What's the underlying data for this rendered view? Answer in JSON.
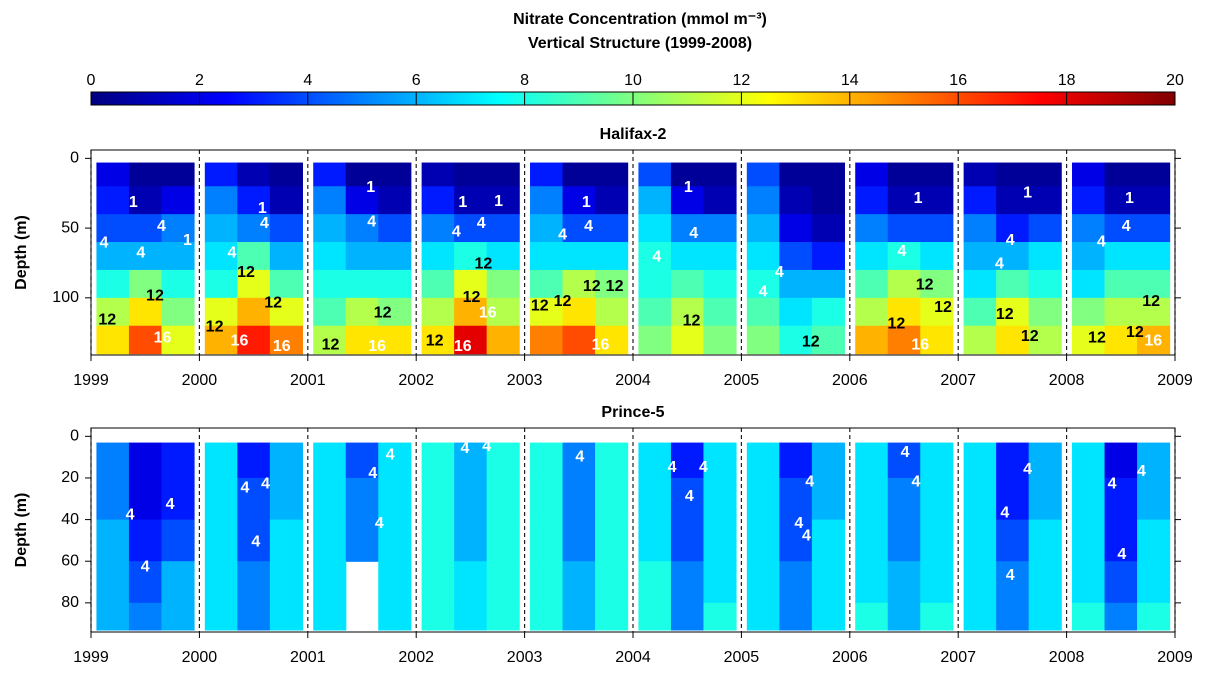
{
  "title": "Nitrate Concentration (mmol m⁻³)",
  "subtitle": "Vertical Structure (1999-2008)",
  "colorbar": {
    "lim": [
      0,
      20
    ],
    "ticks": [
      0,
      2,
      4,
      6,
      8,
      10,
      12,
      14,
      16,
      18,
      20
    ],
    "colormap": "jet"
  },
  "chart_data": [
    {
      "type": "heatmap",
      "title": "Halifax-2",
      "ylabel": "Depth (m)",
      "xlim": [
        1999,
        2009
      ],
      "xticks": [
        1999,
        2000,
        2001,
        2002,
        2003,
        2004,
        2005,
        2006,
        2007,
        2008,
        2009
      ],
      "ylim": [
        -6,
        141
      ],
      "yticks": [
        0,
        50,
        100
      ],
      "y_inverted": true,
      "grid": true,
      "x_edges": [
        1999.05,
        1999.35,
        1999.65,
        1999.95,
        2000.05,
        2000.35,
        2000.65,
        2000.95,
        2001.05,
        2001.35,
        2001.65,
        2001.95,
        2002.05,
        2002.35,
        2002.65,
        2002.95,
        2003.05,
        2003.35,
        2003.65,
        2003.95,
        2004.05,
        2004.35,
        2004.65,
        2004.95,
        2005.05,
        2005.35,
        2005.65,
        2005.95,
        2006.05,
        2006.35,
        2006.65,
        2006.95,
        2007.05,
        2007.35,
        2007.65,
        2007.95,
        2008.05,
        2008.35,
        2008.65,
        2008.95
      ],
      "y_edges": [
        3,
        20,
        40,
        60,
        80,
        100,
        120,
        140
      ],
      "z": [
        [
          2,
          0.5,
          0.5,
          null,
          3,
          1,
          0.5,
          null,
          3,
          0.5,
          0.5,
          null,
          1,
          0.5,
          0.5,
          null,
          3,
          0.5,
          0.5,
          null,
          4,
          0.5,
          0.5,
          null,
          4,
          0.5,
          0.5,
          null,
          2,
          0.5,
          0.5,
          null,
          1,
          0.5,
          0.5,
          null,
          2,
          0.5,
          0.5
        ],
        [
          3,
          1,
          2,
          null,
          5,
          3,
          1,
          null,
          5,
          2,
          1,
          null,
          3,
          1,
          1,
          null,
          5,
          2,
          1,
          null,
          6,
          2,
          1,
          null,
          5,
          1,
          0.5,
          null,
          3,
          1,
          1,
          null,
          3,
          1,
          1,
          null,
          3,
          1,
          1
        ],
        [
          4,
          4,
          5,
          null,
          6,
          5,
          4,
          null,
          6,
          5,
          4,
          null,
          5,
          4,
          4,
          null,
          6,
          4,
          4,
          null,
          7,
          5,
          5,
          null,
          6,
          2,
          1,
          null,
          5,
          4,
          4,
          null,
          5,
          3,
          4,
          null,
          5,
          4,
          4
        ],
        [
          6,
          6,
          6,
          null,
          7,
          9,
          6,
          null,
          7,
          6,
          6,
          null,
          7,
          8,
          7,
          null,
          7,
          7,
          7,
          null,
          8,
          7,
          7,
          null,
          7,
          4,
          3,
          null,
          7,
          8,
          7,
          null,
          6,
          6,
          7,
          null,
          6,
          7,
          7
        ],
        [
          8,
          10,
          8,
          null,
          8,
          12,
          9,
          null,
          8,
          8,
          8,
          null,
          9,
          12,
          10,
          null,
          9,
          11,
          10,
          null,
          8,
          9,
          8,
          null,
          8,
          6,
          6,
          null,
          9,
          11,
          10,
          null,
          7,
          9,
          8,
          null,
          7,
          9,
          9
        ],
        [
          11,
          13,
          10,
          null,
          12,
          14,
          12,
          null,
          9,
          11,
          10,
          null,
          11,
          14,
          11,
          null,
          12,
          13,
          11,
          null,
          9,
          11,
          9,
          null,
          9,
          7,
          8,
          null,
          11,
          13,
          12,
          null,
          9,
          12,
          10,
          null,
          10,
          11,
          11
        ],
        [
          13,
          16,
          12,
          null,
          14,
          17,
          15,
          null,
          11,
          13,
          13,
          null,
          13,
          18,
          14,
          null,
          15,
          16,
          13,
          null,
          10,
          12,
          10,
          null,
          10,
          8,
          9,
          null,
          14,
          15,
          13,
          null,
          11,
          13,
          11,
          null,
          12,
          13,
          14
        ]
      ],
      "contour_labels": [
        {
          "x": 1999.39,
          "depth": 32,
          "value": 1
        },
        {
          "x": 1999.12,
          "depth": 61,
          "value": 4
        },
        {
          "x": 1999.65,
          "depth": 49,
          "value": 4
        },
        {
          "x": 1999.46,
          "depth": 68,
          "value": 4
        },
        {
          "x": 1999.89,
          "depth": 59,
          "value": 1
        },
        {
          "x": 1999.59,
          "depth": 99,
          "value": 12
        },
        {
          "x": 1999.15,
          "depth": 116,
          "value": 12
        },
        {
          "x": 1999.66,
          "depth": 129,
          "value": 16
        },
        {
          "x": 2000.3,
          "depth": 68,
          "value": 4
        },
        {
          "x": 2000.58,
          "depth": 36,
          "value": 1
        },
        {
          "x": 2000.6,
          "depth": 47,
          "value": 4
        },
        {
          "x": 2000.43,
          "depth": 82,
          "value": 12
        },
        {
          "x": 2000.68,
          "depth": 104,
          "value": 12
        },
        {
          "x": 2000.14,
          "depth": 121,
          "value": 12
        },
        {
          "x": 2000.37,
          "depth": 131,
          "value": 16
        },
        {
          "x": 2000.76,
          "depth": 135,
          "value": 16
        },
        {
          "x": 2001.58,
          "depth": 21,
          "value": 1
        },
        {
          "x": 2001.59,
          "depth": 46,
          "value": 4
        },
        {
          "x": 2001.69,
          "depth": 111,
          "value": 12
        },
        {
          "x": 2001.21,
          "depth": 134,
          "value": 12
        },
        {
          "x": 2001.64,
          "depth": 135,
          "value": 16
        },
        {
          "x": 2002.43,
          "depth": 32,
          "value": 1
        },
        {
          "x": 2002.37,
          "depth": 53,
          "value": 4
        },
        {
          "x": 2002.6,
          "depth": 47,
          "value": 4
        },
        {
          "x": 2002.76,
          "depth": 31,
          "value": 1
        },
        {
          "x": 2002.62,
          "depth": 76,
          "value": 12
        },
        {
          "x": 2002.51,
          "depth": 100,
          "value": 12
        },
        {
          "x": 2002.66,
          "depth": 111,
          "value": 16
        },
        {
          "x": 2002.17,
          "depth": 131,
          "value": 12
        },
        {
          "x": 2002.43,
          "depth": 135,
          "value": 16
        },
        {
          "x": 2003.57,
          "depth": 32,
          "value": 1
        },
        {
          "x": 2003.35,
          "depth": 55,
          "value": 4
        },
        {
          "x": 2003.59,
          "depth": 49,
          "value": 4
        },
        {
          "x": 2003.14,
          "depth": 106,
          "value": 12
        },
        {
          "x": 2003.35,
          "depth": 103,
          "value": 12
        },
        {
          "x": 2003.62,
          "depth": 92,
          "value": 12
        },
        {
          "x": 2003.83,
          "depth": 92,
          "value": 12
        },
        {
          "x": 2003.7,
          "depth": 134,
          "value": 16
        },
        {
          "x": 2004.51,
          "depth": 21,
          "value": 1
        },
        {
          "x": 2004.22,
          "depth": 71,
          "value": 4
        },
        {
          "x": 2004.56,
          "depth": 54,
          "value": 4
        },
        {
          "x": 2004.54,
          "depth": 117,
          "value": 12
        },
        {
          "x": 2005.35,
          "depth": 82,
          "value": 4
        },
        {
          "x": 2005.2,
          "depth": 96,
          "value": 4
        },
        {
          "x": 2005.64,
          "depth": 132,
          "value": 12
        },
        {
          "x": 2006.63,
          "depth": 29,
          "value": 1
        },
        {
          "x": 2006.48,
          "depth": 67,
          "value": 4
        },
        {
          "x": 2006.69,
          "depth": 91,
          "value": 12
        },
        {
          "x": 2006.86,
          "depth": 107,
          "value": 12
        },
        {
          "x": 2006.43,
          "depth": 119,
          "value": 12
        },
        {
          "x": 2006.65,
          "depth": 134,
          "value": 16
        },
        {
          "x": 2007.64,
          "depth": 25,
          "value": 1
        },
        {
          "x": 2007.48,
          "depth": 59,
          "value": 4
        },
        {
          "x": 2007.38,
          "depth": 76,
          "value": 4
        },
        {
          "x": 2007.43,
          "depth": 112,
          "value": 12
        },
        {
          "x": 2007.66,
          "depth": 128,
          "value": 12
        },
        {
          "x": 2008.58,
          "depth": 29,
          "value": 1
        },
        {
          "x": 2008.55,
          "depth": 49,
          "value": 4
        },
        {
          "x": 2008.32,
          "depth": 60,
          "value": 4
        },
        {
          "x": 2008.78,
          "depth": 103,
          "value": 12
        },
        {
          "x": 2008.63,
          "depth": 125,
          "value": 12
        },
        {
          "x": 2008.28,
          "depth": 129,
          "value": 12
        },
        {
          "x": 2008.8,
          "depth": 131,
          "value": 16
        }
      ]
    },
    {
      "type": "heatmap",
      "title": "Prince-5",
      "ylabel": "Depth (m)",
      "xlim": [
        1999,
        2009
      ],
      "xticks": [
        1999,
        2000,
        2001,
        2002,
        2003,
        2004,
        2005,
        2006,
        2007,
        2008,
        2009
      ],
      "ylim": [
        -4,
        94
      ],
      "yticks": [
        0,
        20,
        40,
        60,
        80
      ],
      "y_inverted": true,
      "grid": true,
      "x_edges": [
        1999.05,
        1999.35,
        1999.65,
        1999.95,
        2000.05,
        2000.35,
        2000.65,
        2000.95,
        2001.05,
        2001.35,
        2001.65,
        2001.95,
        2002.05,
        2002.35,
        2002.65,
        2002.95,
        2003.05,
        2003.35,
        2003.65,
        2003.95,
        2004.05,
        2004.35,
        2004.65,
        2004.95,
        2005.05,
        2005.35,
        2005.65,
        2005.95,
        2006.05,
        2006.35,
        2006.65,
        2006.95,
        2007.05,
        2007.35,
        2007.65,
        2007.95,
        2008.05,
        2008.35,
        2008.65,
        2008.95
      ],
      "y_edges": [
        3,
        20,
        40,
        60,
        80,
        93
      ],
      "z": [
        [
          5,
          2,
          3,
          null,
          7,
          3,
          6,
          null,
          7,
          4,
          7,
          null,
          8,
          6,
          8,
          null,
          8,
          5,
          8,
          null,
          7,
          3,
          7,
          null,
          7,
          3,
          6,
          null,
          7,
          4,
          7,
          null,
          7,
          3,
          6,
          null,
          7,
          2,
          6
        ],
        [
          5,
          2,
          3,
          null,
          7,
          4,
          6,
          null,
          7,
          5,
          7,
          null,
          8,
          6,
          8,
          null,
          8,
          5,
          8,
          null,
          7,
          4,
          7,
          null,
          7,
          4,
          6,
          null,
          7,
          5,
          7,
          null,
          7,
          3,
          6,
          null,
          7,
          3,
          6
        ],
        [
          6,
          3,
          4,
          null,
          7,
          4,
          7,
          null,
          7,
          5,
          7,
          null,
          8,
          6,
          8,
          null,
          8,
          5,
          8,
          null,
          7,
          4,
          7,
          null,
          7,
          4,
          7,
          null,
          7,
          5,
          7,
          null,
          7,
          4,
          7,
          null,
          7,
          3,
          7
        ],
        [
          6,
          4,
          6,
          null,
          7,
          5,
          7,
          null,
          7,
          null,
          7,
          null,
          8,
          7,
          8,
          null,
          8,
          6,
          8,
          null,
          8,
          5,
          7,
          null,
          7,
          5,
          7,
          null,
          7,
          6,
          7,
          null,
          7,
          5,
          7,
          null,
          7,
          4,
          7
        ],
        [
          6,
          5,
          6,
          null,
          7,
          5,
          7,
          null,
          7,
          null,
          7,
          null,
          8,
          7,
          8,
          null,
          8,
          6,
          8,
          null,
          8,
          5,
          8,
          null,
          7,
          5,
          7,
          null,
          8,
          6,
          8,
          null,
          7,
          5,
          7,
          null,
          8,
          5,
          8
        ]
      ],
      "contour_labels": [
        {
          "x": 1999.36,
          "depth": 38,
          "value": 4
        },
        {
          "x": 1999.73,
          "depth": 33,
          "value": 4
        },
        {
          "x": 1999.5,
          "depth": 63,
          "value": 4
        },
        {
          "x": 2000.42,
          "depth": 25,
          "value": 4
        },
        {
          "x": 2000.61,
          "depth": 23,
          "value": 4
        },
        {
          "x": 2000.52,
          "depth": 51,
          "value": 4
        },
        {
          "x": 2001.6,
          "depth": 18,
          "value": 4
        },
        {
          "x": 2001.76,
          "depth": 9,
          "value": 4
        },
        {
          "x": 2001.66,
          "depth": 42,
          "value": 4
        },
        {
          "x": 2002.45,
          "depth": 6,
          "value": 4
        },
        {
          "x": 2002.65,
          "depth": 5,
          "value": 4
        },
        {
          "x": 2003.51,
          "depth": 10,
          "value": 4
        },
        {
          "x": 2004.36,
          "depth": 15,
          "value": 4
        },
        {
          "x": 2004.65,
          "depth": 15,
          "value": 4
        },
        {
          "x": 2004.52,
          "depth": 29,
          "value": 4
        },
        {
          "x": 2005.63,
          "depth": 22,
          "value": 4
        },
        {
          "x": 2005.53,
          "depth": 42,
          "value": 4
        },
        {
          "x": 2005.6,
          "depth": 48,
          "value": 4
        },
        {
          "x": 2006.51,
          "depth": 8,
          "value": 4
        },
        {
          "x": 2006.61,
          "depth": 22,
          "value": 4
        },
        {
          "x": 2007.64,
          "depth": 16,
          "value": 4
        },
        {
          "x": 2007.43,
          "depth": 37,
          "value": 4
        },
        {
          "x": 2007.48,
          "depth": 67,
          "value": 4
        },
        {
          "x": 2008.69,
          "depth": 17,
          "value": 4
        },
        {
          "x": 2008.42,
          "depth": 23,
          "value": 4
        },
        {
          "x": 2008.51,
          "depth": 57,
          "value": 4
        }
      ]
    }
  ]
}
